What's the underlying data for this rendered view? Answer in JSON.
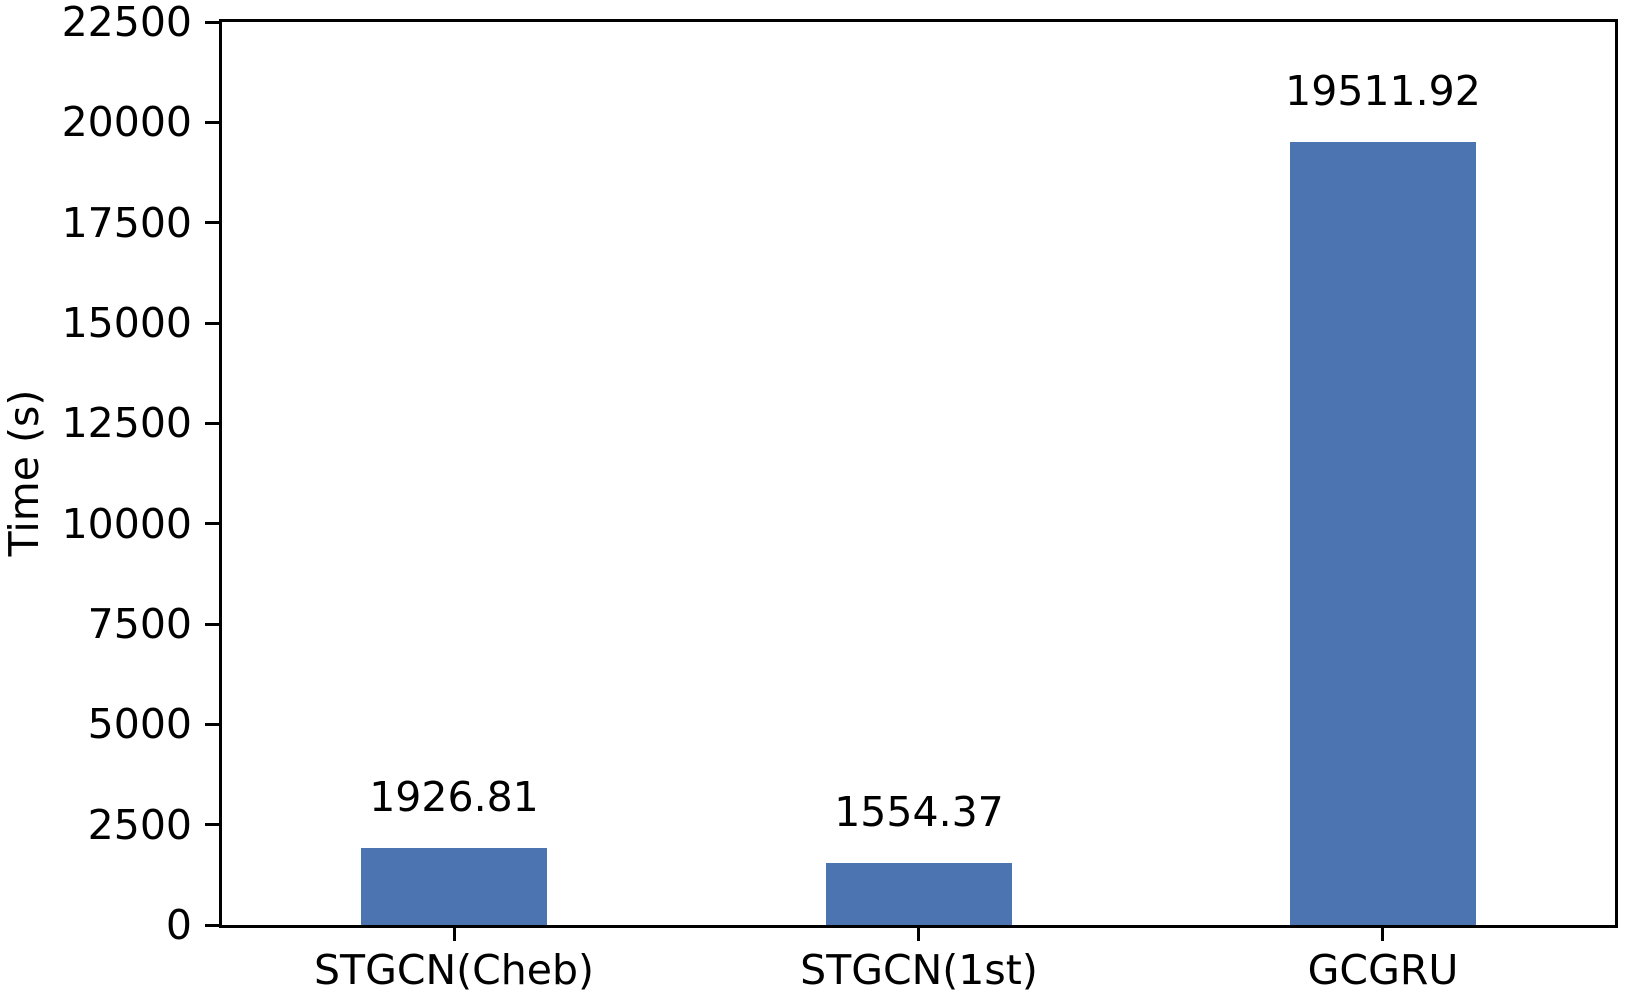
{
  "figure": {
    "background": "#ffffff",
    "text_color": "#000000",
    "axis_color": "#000000"
  },
  "chart_data": {
    "type": "bar",
    "categories": [
      "STGCN(Cheb)",
      "STGCN(1st)",
      "GCGRU"
    ],
    "values": [
      1926.81,
      1554.37,
      19511.92
    ],
    "bar_labels": [
      "1926.81",
      "1554.37",
      "19511.92"
    ],
    "title": "",
    "xlabel": "",
    "ylabel": "Time (s)",
    "ylim": [
      0,
      22500
    ],
    "yticks": [
      0,
      2500,
      5000,
      7500,
      10000,
      12500,
      15000,
      17500,
      20000,
      22500
    ],
    "bar_color": "#4C74B0",
    "bar_width_fraction": 0.4,
    "grid": false,
    "legend": "none"
  }
}
